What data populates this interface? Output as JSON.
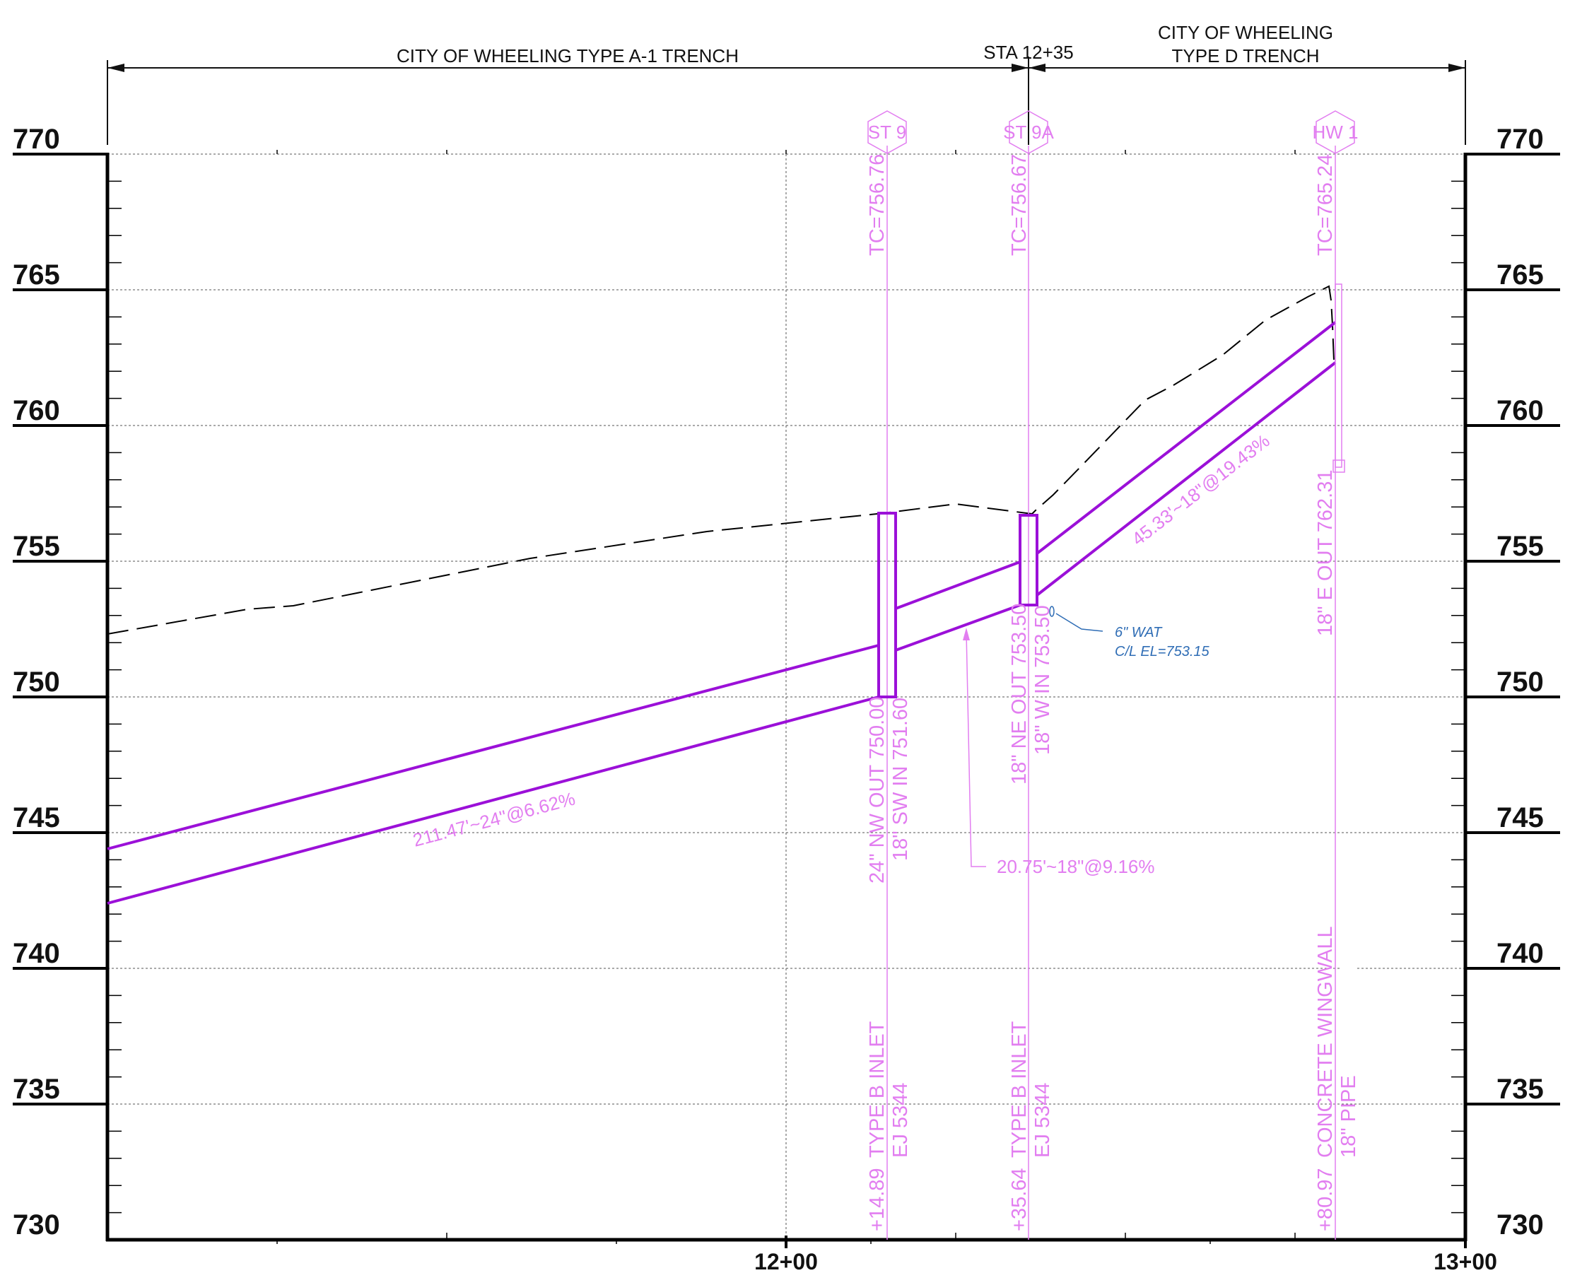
{
  "header": {
    "trench_a": "CITY OF WHEELING TYPE A-1 TRENCH",
    "station_break": "STA 12+35",
    "trench_d_line1": "CITY OF WHEELING",
    "trench_d_line2": "TYPE D TRENCH"
  },
  "axes": {
    "elevations": [
      "770",
      "765",
      "760",
      "755",
      "750",
      "745",
      "740",
      "735",
      "730"
    ],
    "stations": [
      "12+00",
      "13+00"
    ]
  },
  "structures": {
    "st9": {
      "name": "ST 9",
      "top": "TC=756.76",
      "inv_out": "24\" NW OUT 750.00",
      "inv_in": "18\" SW IN 751.60",
      "type": "TYPE B INLET",
      "casting": "EJ 5344",
      "offset": "+14.89"
    },
    "st9a": {
      "name": "ST 9A",
      "top": "TC=756.67",
      "inv_out": "18\" NE OUT 753.50",
      "inv_in": "18\" W IN 753.50",
      "type": "TYPE B INLET",
      "casting": "EJ 5344",
      "offset": "+35.64"
    },
    "hw1": {
      "name": "HW 1",
      "top": "TC=765.24",
      "inv": "18\" E OUT 762.31",
      "type": "CONCRETE WINGWALL",
      "note": "18\" PIPE",
      "offset": "+80.97"
    }
  },
  "pipes": {
    "p1": "211.47'~24\"@6.62%",
    "p2": "20.75'~18\"@9.16%",
    "p3": "45.33'~18\"@19.43%"
  },
  "utility": {
    "line1": "6\" WAT",
    "line2": "C/L EL=753.15"
  },
  "colors": {
    "pipe": "#9b10d8",
    "annotation": "#e27ef0",
    "utility": "#2f6db5",
    "ground": "#000000",
    "grid": "#555555"
  }
}
